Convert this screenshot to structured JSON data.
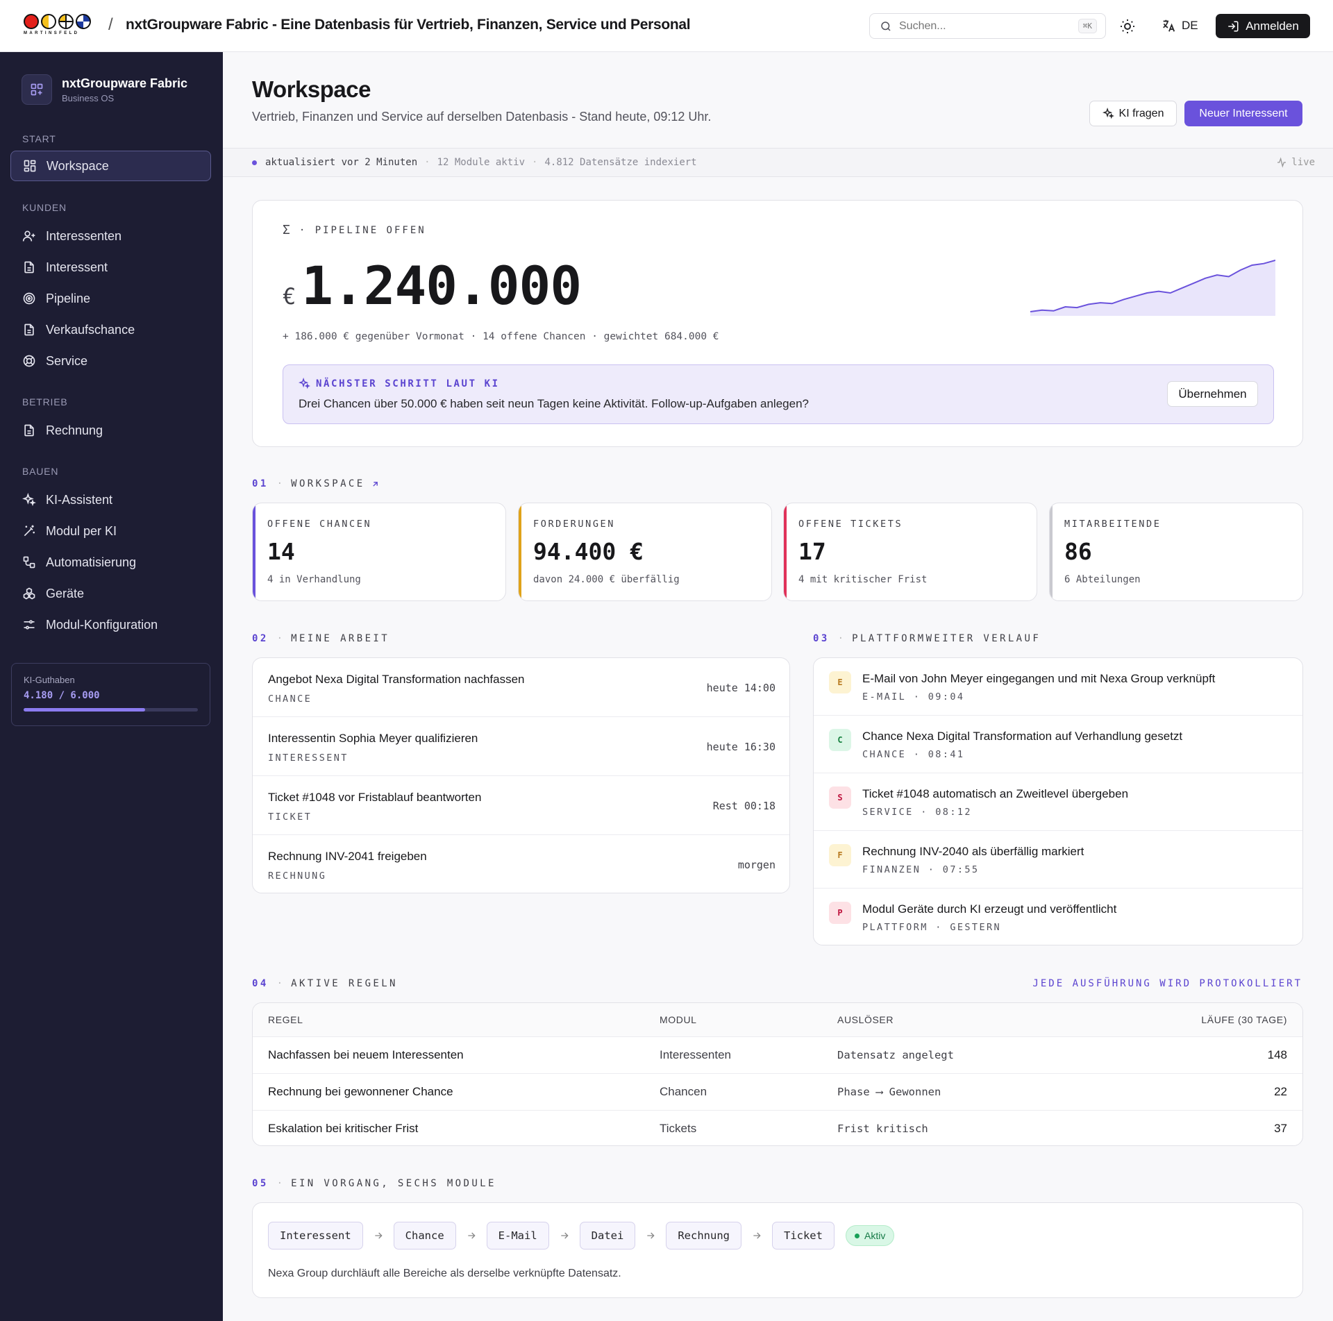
{
  "header": {
    "logo_text": "MARTINSFELD",
    "separator": "/",
    "title": "nxtGroupware Fabric - Eine Datenbasis für Vertrieb, Finanzen, Service und Personal",
    "search_placeholder": "Suchen...",
    "search_shortcut": "⌘K",
    "language": "DE",
    "login_label": "Anmelden"
  },
  "sidebar": {
    "brand_title": "nxtGroupware Fabric",
    "brand_sub": "Business OS",
    "sections": {
      "start": "START",
      "kunden": "KUNDEN",
      "betrieb": "BETRIEB",
      "bauen": "BAUEN"
    },
    "items": {
      "workspace": "Workspace",
      "interessenten": "Interessenten",
      "interessent": "Interessent",
      "pipeline": "Pipeline",
      "verkaufschance": "Verkaufschance",
      "service": "Service",
      "rechnung": "Rechnung",
      "ki_assistent": "KI-Assistent",
      "modul_ki": "Modul per KI",
      "automatisierung": "Automatisierung",
      "geraete": "Geräte",
      "modul_konfig": "Modul-Konfiguration"
    },
    "credits": {
      "label": "KI-Guthaben",
      "value": "4.180  /  6.000",
      "used": 4180,
      "total": 6000
    }
  },
  "page": {
    "title": "Workspace",
    "subtitle": "Vertrieb, Finanzen und Service auf derselben Datenbasis - Stand heute, 09:12 Uhr.",
    "ask_ai": "KI fragen",
    "new_lead": "Neuer Interessent"
  },
  "status": {
    "updated": "aktualisiert vor 2 Minuten",
    "modules": "12 Module aktiv",
    "records": "4.812 Datensätze indexiert",
    "live": "live",
    "sep": "·"
  },
  "pipeline": {
    "label": "· PIPELINE OFFEN",
    "sigma": "Σ",
    "currency": "€",
    "value": "1.240.000",
    "meta": "+ 186.000 € gegenüber Vormonat  ·  14 offene Chancen  ·  gewichtet 684.000 €",
    "trend": [
      3,
      5,
      4,
      9,
      8,
      12,
      14,
      13,
      18,
      22,
      26,
      28,
      26,
      32,
      38,
      44,
      48,
      46,
      54,
      60,
      62,
      66
    ]
  },
  "ai_hint": {
    "label": "NÄCHSTER SCHRITT LAUT KI",
    "text": "Drei Chancen über 50.000 € haben seit neun Tagen keine Aktivität. Follow-up-Aufgaben anlegen?",
    "button": "Übernehmen"
  },
  "sections": {
    "s01": {
      "num": "01",
      "title": "WORKSPACE"
    },
    "s02": {
      "num": "02",
      "title": "MEINE ARBEIT"
    },
    "s03": {
      "num": "03",
      "title": "PLATTFORMWEITER VERLAUF"
    },
    "s04": {
      "num": "04",
      "title": "AKTIVE REGELN",
      "note": "JEDE AUSFÜHRUNG WIRD PROTOKOLLIERT"
    },
    "s05": {
      "num": "05",
      "title": "EIN VORGANG, SECHS MODULE"
    },
    "dot": "·"
  },
  "kpis": [
    {
      "label": "OFFENE CHANCEN",
      "value": "14",
      "sub": "4 in Verhandlung",
      "color": "#6a52dc"
    },
    {
      "label": "FORDERUNGEN",
      "value": "94.400 €",
      "sub": "davon 24.000 € überfällig",
      "color": "#e0a31a"
    },
    {
      "label": "OFFENE TICKETS",
      "value": "17",
      "sub": "4 mit kritischer Frist",
      "color": "#e0325a"
    },
    {
      "label": "MITARBEITENDE",
      "value": "86",
      "sub": "6 Abteilungen",
      "color": "#c9c9cf"
    }
  ],
  "work": [
    {
      "title": "Angebot Nexa Digital Transformation nachfassen",
      "tag": "CHANCE",
      "time": "heute 14:00"
    },
    {
      "title": "Interessentin Sophia Meyer qualifizieren",
      "tag": "INTERESSENT",
      "time": "heute 16:30"
    },
    {
      "title": "Ticket #1048 vor Fristablauf beantworten",
      "tag": "TICKET",
      "time": "Rest 00:18"
    },
    {
      "title": "Rechnung INV-2041 freigeben",
      "tag": "RECHNUNG",
      "time": "morgen"
    }
  ],
  "feed": [
    {
      "badge": "E",
      "title": "E-Mail von John Meyer eingegangen und mit Nexa Group verknüpft",
      "meta": "E-MAIL · 09:04",
      "bg": "#fdf3d2",
      "fg": "#b7791f"
    },
    {
      "badge": "C",
      "title": "Chance Nexa Digital Transformation auf Verhandlung gesetzt",
      "meta": "CHANCE · 08:41",
      "bg": "#dcf6e7",
      "fg": "#15803d"
    },
    {
      "badge": "S",
      "title": "Ticket #1048 automatisch an Zweitlevel übergeben",
      "meta": "SERVICE · 08:12",
      "bg": "#fde1e5",
      "fg": "#be123c"
    },
    {
      "badge": "F",
      "title": "Rechnung INV-2040 als überfällig markiert",
      "meta": "FINANZEN · 07:55",
      "bg": "#fdf3d2",
      "fg": "#b7791f"
    },
    {
      "badge": "P",
      "title": "Modul Geräte durch KI erzeugt und veröffentlicht",
      "meta": "PLATTFORM · GESTERN",
      "bg": "#fde1e5",
      "fg": "#be123c"
    }
  ],
  "rules": {
    "headers": [
      "REGEL",
      "MODUL",
      "AUSLÖSER",
      "LÄUFE (30 TAGE)"
    ],
    "rows": [
      {
        "rule": "Nachfassen bei neuem Interessenten",
        "module": "Interessenten",
        "trigger": "Datensatz angelegt",
        "runs": "148"
      },
      {
        "rule": "Rechnung bei gewonnener Chance",
        "module": "Chancen",
        "trigger": "Phase ⟶ Gewonnen",
        "runs": "22"
      },
      {
        "rule": "Eskalation bei kritischer Frist",
        "module": "Tickets",
        "trigger": "Frist kritisch",
        "runs": "37"
      }
    ]
  },
  "flow": {
    "steps": [
      "Interessent",
      "Chance",
      "E-Mail",
      "Datei",
      "Rechnung",
      "Ticket"
    ],
    "status": "Aktiv",
    "text": "Nexa Group durchläuft alle Bereiche als derselbe verknüpfte Datensatz."
  }
}
